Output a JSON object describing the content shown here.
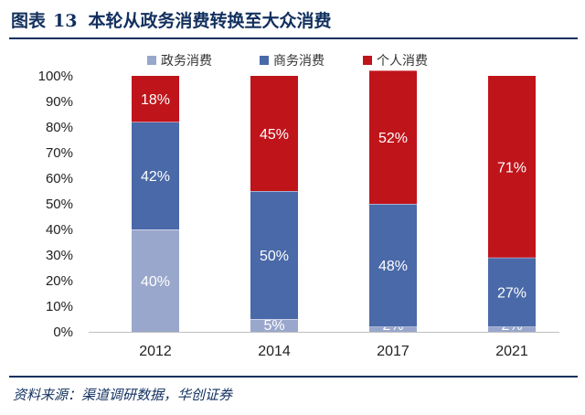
{
  "header": {
    "figure_label": "图表",
    "figure_number": "13",
    "title": "本轮从政务消费转换至大众消费"
  },
  "footer": {
    "source": "资料来源：渠道调研数据，华创证券"
  },
  "colors": {
    "government": "#9aa7cc",
    "business": "#4a69a8",
    "mass": "#c0141b",
    "navy": "#12305e"
  },
  "chart_data": {
    "type": "bar",
    "stacked": true,
    "percent": true,
    "title": "本轮从政务消费转换至大众消费",
    "xlabel": "",
    "ylabel": "",
    "ylim": [
      0,
      100
    ],
    "y_ticks": [
      "0%",
      "10%",
      "20%",
      "30%",
      "40%",
      "50%",
      "60%",
      "70%",
      "80%",
      "90%",
      "100%"
    ],
    "legend_position": "top",
    "categories": [
      "2012",
      "2014",
      "2017",
      "2021"
    ],
    "series": [
      {
        "name": "政务消费",
        "color": "#9aa7cc",
        "values": [
          40,
          5,
          2,
          2
        ],
        "labels": [
          "40%",
          "5%",
          "2%",
          "2%"
        ]
      },
      {
        "name": "商务消费",
        "color": "#4a69a8",
        "values": [
          42,
          50,
          48,
          27
        ],
        "labels": [
          "42%",
          "50%",
          "48%",
          "27%"
        ]
      },
      {
        "name": "个人消费",
        "color": "#c0141b",
        "values": [
          18,
          45,
          52,
          71
        ],
        "labels": [
          "18%",
          "45%",
          "52%",
          "71%"
        ]
      }
    ]
  }
}
